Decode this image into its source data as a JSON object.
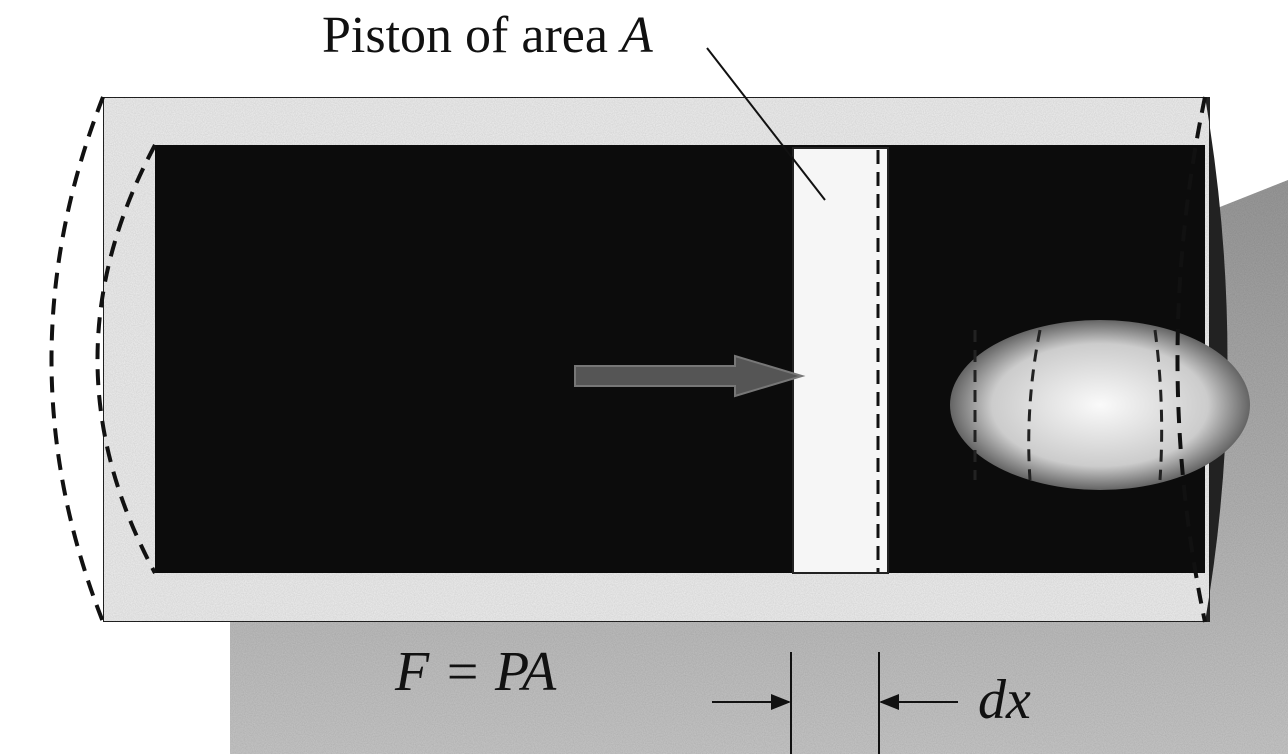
{
  "piston_label": {
    "text": "Piston of area",
    "symbol": "A"
  },
  "force_label": "F = PA",
  "displacement_label": "dx"
}
